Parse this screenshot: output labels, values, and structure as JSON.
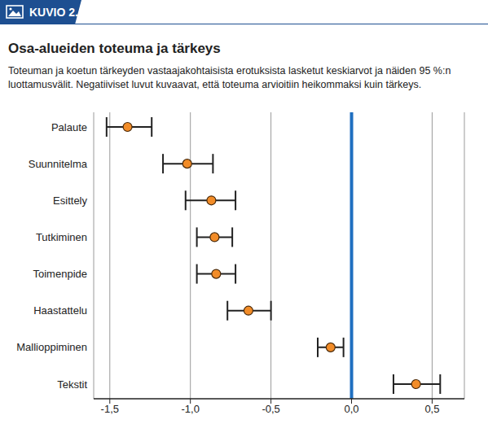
{
  "figure_label": "KUVIO 2.",
  "chart_data": {
    "type": "scatter",
    "orientation": "horizontal",
    "title": "Osa-alueiden toteuma ja tärkeys",
    "subtitle": "Toteuman ja koetun tärkeyden vastaajakohtaisista erotuksista lasketut keskiarvot ja näiden 95 %:n luottamusvälit. Negatiiviset luvut kuvaavat, että toteuma arvioitiin heikommaksi kuin tärkeys.",
    "categories": [
      "Palaute",
      "Suunnitelma",
      "Esittely",
      "Tutkiminen",
      "Toimenpide",
      "Haastattelu",
      "Mallioppiminen",
      "Tekstit"
    ],
    "values": [
      -1.39,
      -1.02,
      -0.87,
      -0.85,
      -0.84,
      -0.64,
      -0.13,
      0.4
    ],
    "ci_low": [
      -1.52,
      -1.17,
      -1.03,
      -0.96,
      -0.96,
      -0.77,
      -0.21,
      0.26
    ],
    "ci_high": [
      -1.24,
      -0.86,
      -0.72,
      -0.74,
      -0.72,
      -0.5,
      -0.05,
      0.55
    ],
    "color": "#f28c28",
    "xlim": [
      -1.6,
      0.7
    ],
    "xticks": [
      {
        "value": -1.5,
        "label": "-1,5"
      },
      {
        "value": -1,
        "label": "-1,0"
      },
      {
        "value": -0.5,
        "label": "-0,5"
      },
      {
        "value": 0,
        "label": "0,0"
      },
      {
        "value": 0.5,
        "label": "0,5"
      }
    ],
    "grid": true,
    "reference_x": 0,
    "reference_color": "#1f6fc0"
  }
}
